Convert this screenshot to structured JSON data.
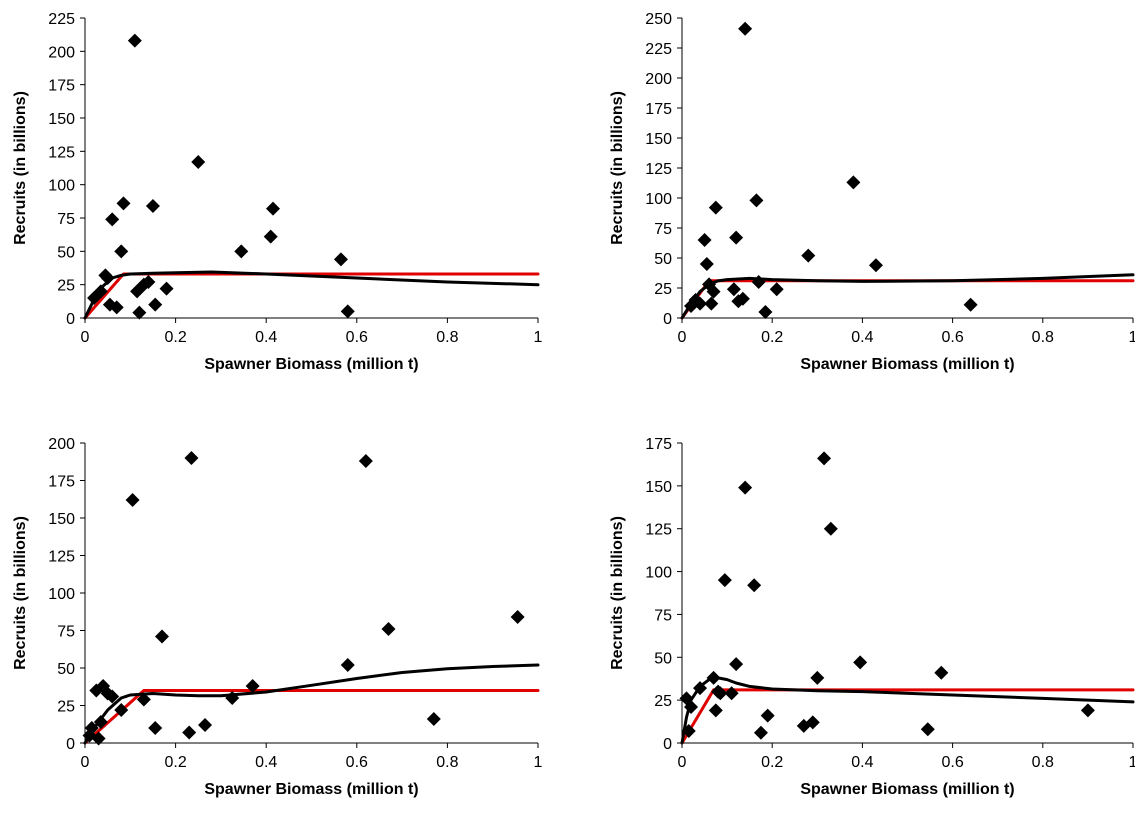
{
  "colors": {
    "points": "#000000",
    "hockey_stick": "#e00000",
    "smooth_fit": "#000000",
    "axes": "#000000"
  },
  "marker_shape": "diamond",
  "chart_data": [
    {
      "type": "scatter",
      "xlabel": "Spawner Biomass (million t)",
      "ylabel": "Recruits (in billions)",
      "xlim": [
        0,
        1
      ],
      "ylim": [
        0,
        225
      ],
      "xticks": [
        "0",
        "0.2",
        "0.4",
        "0.6",
        "0.8",
        "1"
      ],
      "yticks": [
        "0",
        "25",
        "50",
        "75",
        "100",
        "125",
        "150",
        "175",
        "200",
        "225"
      ],
      "grid": false,
      "legend": "none",
      "series": [
        {
          "kind": "points",
          "x": [
            0.02,
            0.035,
            0.045,
            0.05,
            0.055,
            0.06,
            0.07,
            0.08,
            0.085,
            0.11,
            0.115,
            0.12,
            0.13,
            0.14,
            0.15,
            0.155,
            0.18,
            0.25,
            0.345,
            0.41,
            0.415,
            0.565,
            0.58
          ],
          "y": [
            15,
            20,
            32,
            30,
            10,
            74,
            8,
            50,
            86,
            208,
            20,
            4,
            25,
            27,
            84,
            10,
            22,
            117,
            50,
            61,
            82,
            44,
            5
          ]
        },
        {
          "kind": "line",
          "color": "red",
          "x": [
            0,
            0.085,
            1
          ],
          "y": [
            0,
            33,
            33
          ]
        },
        {
          "kind": "line",
          "color": "black",
          "x": [
            0,
            0.02,
            0.04,
            0.06,
            0.08,
            0.1,
            0.15,
            0.2,
            0.28,
            0.4,
            0.6,
            0.8,
            1
          ],
          "y": [
            0,
            14,
            24,
            30,
            32,
            33,
            33.5,
            34,
            34.5,
            33,
            30,
            27,
            25
          ]
        }
      ]
    },
    {
      "type": "scatter",
      "xlabel": "Spawner Biomass (million t)",
      "ylabel": "Recruits (in billions)",
      "xlim": [
        0,
        1
      ],
      "ylim": [
        0,
        250
      ],
      "xticks": [
        "0",
        "0.2",
        "0.4",
        "0.6",
        "0.8",
        "1"
      ],
      "yticks": [
        "0",
        "25",
        "50",
        "75",
        "100",
        "125",
        "150",
        "175",
        "200",
        "225",
        "250"
      ],
      "grid": false,
      "legend": "none",
      "series": [
        {
          "kind": "points",
          "x": [
            0.02,
            0.03,
            0.04,
            0.05,
            0.055,
            0.06,
            0.065,
            0.07,
            0.075,
            0.115,
            0.12,
            0.125,
            0.135,
            0.14,
            0.165,
            0.17,
            0.185,
            0.21,
            0.28,
            0.38,
            0.43,
            0.64
          ],
          "y": [
            10,
            15,
            12,
            65,
            45,
            28,
            12,
            22,
            92,
            24,
            67,
            14,
            16,
            241,
            98,
            30,
            5,
            24,
            52,
            113,
            44,
            11
          ]
        },
        {
          "kind": "line",
          "color": "red",
          "x": [
            0,
            0.06,
            1
          ],
          "y": [
            0,
            31,
            31
          ]
        },
        {
          "kind": "line",
          "color": "black",
          "x": [
            0,
            0.02,
            0.04,
            0.06,
            0.08,
            0.1,
            0.15,
            0.2,
            0.3,
            0.4,
            0.6,
            0.8,
            1
          ],
          "y": [
            0,
            12,
            22,
            28,
            31,
            32,
            33,
            32,
            31,
            30.5,
            31,
            33,
            36
          ]
        }
      ]
    },
    {
      "type": "scatter",
      "xlabel": "Spawner Biomass (million t)",
      "ylabel": "Recruits (in billions)",
      "xlim": [
        0,
        1
      ],
      "ylim": [
        0,
        200
      ],
      "xticks": [
        "0",
        "0.2",
        "0.4",
        "0.6",
        "0.8",
        "1"
      ],
      "yticks": [
        "0",
        "25",
        "50",
        "75",
        "100",
        "125",
        "150",
        "175",
        "200"
      ],
      "grid": false,
      "legend": "none",
      "series": [
        {
          "kind": "points",
          "x": [
            0.01,
            0.015,
            0.025,
            0.03,
            0.035,
            0.04,
            0.05,
            0.06,
            0.08,
            0.105,
            0.13,
            0.155,
            0.17,
            0.23,
            0.235,
            0.265,
            0.325,
            0.37,
            0.58,
            0.62,
            0.67,
            0.77,
            0.955
          ],
          "y": [
            5,
            10,
            35,
            3,
            14,
            38,
            33,
            31,
            22,
            162,
            29,
            10,
            71,
            7,
            190,
            12,
            30,
            38,
            52,
            188,
            76,
            16,
            84
          ]
        },
        {
          "kind": "line",
          "color": "red",
          "x": [
            0,
            0.13,
            1
          ],
          "y": [
            0,
            35,
            35
          ]
        },
        {
          "kind": "line",
          "color": "black",
          "x": [
            0,
            0.02,
            0.05,
            0.08,
            0.1,
            0.15,
            0.2,
            0.25,
            0.3,
            0.4,
            0.5,
            0.6,
            0.7,
            0.8,
            0.9,
            1
          ],
          "y": [
            0,
            10,
            22,
            30,
            32,
            33,
            32,
            31.5,
            31.5,
            34,
            38.5,
            43,
            47,
            49.5,
            51,
            52
          ]
        }
      ]
    },
    {
      "type": "scatter",
      "xlabel": "Spawner Biomass (million t)",
      "ylabel": "Recruits (in billions)",
      "xlim": [
        0,
        1
      ],
      "ylim": [
        0,
        175
      ],
      "xticks": [
        "0",
        "0.2",
        "0.4",
        "0.6",
        "0.8",
        "1"
      ],
      "yticks": [
        "0",
        "25",
        "50",
        "75",
        "100",
        "125",
        "150",
        "175"
      ],
      "grid": false,
      "legend": "none",
      "series": [
        {
          "kind": "points",
          "x": [
            0.01,
            0.015,
            0.02,
            0.04,
            0.07,
            0.075,
            0.08,
            0.085,
            0.095,
            0.11,
            0.12,
            0.14,
            0.16,
            0.175,
            0.19,
            0.27,
            0.29,
            0.3,
            0.315,
            0.33,
            0.395,
            0.545,
            0.575,
            0.9
          ],
          "y": [
            26,
            7,
            21,
            32,
            38,
            19,
            30,
            29,
            95,
            29,
            46,
            149,
            92,
            6,
            16,
            10,
            12,
            38,
            166,
            125,
            47,
            8,
            41,
            19
          ]
        },
        {
          "kind": "line",
          "color": "red",
          "x": [
            0,
            0.07,
            1
          ],
          "y": [
            0,
            31,
            31
          ]
        },
        {
          "kind": "line",
          "color": "black",
          "x": [
            0,
            0.01,
            0.02,
            0.04,
            0.06,
            0.08,
            0.1,
            0.12,
            0.15,
            0.2,
            0.3,
            0.4,
            0.6,
            0.8,
            1
          ],
          "y": [
            0,
            15,
            25,
            33,
            37,
            38,
            37,
            35,
            33,
            31.5,
            30.5,
            30,
            28,
            26,
            24
          ]
        }
      ]
    }
  ]
}
